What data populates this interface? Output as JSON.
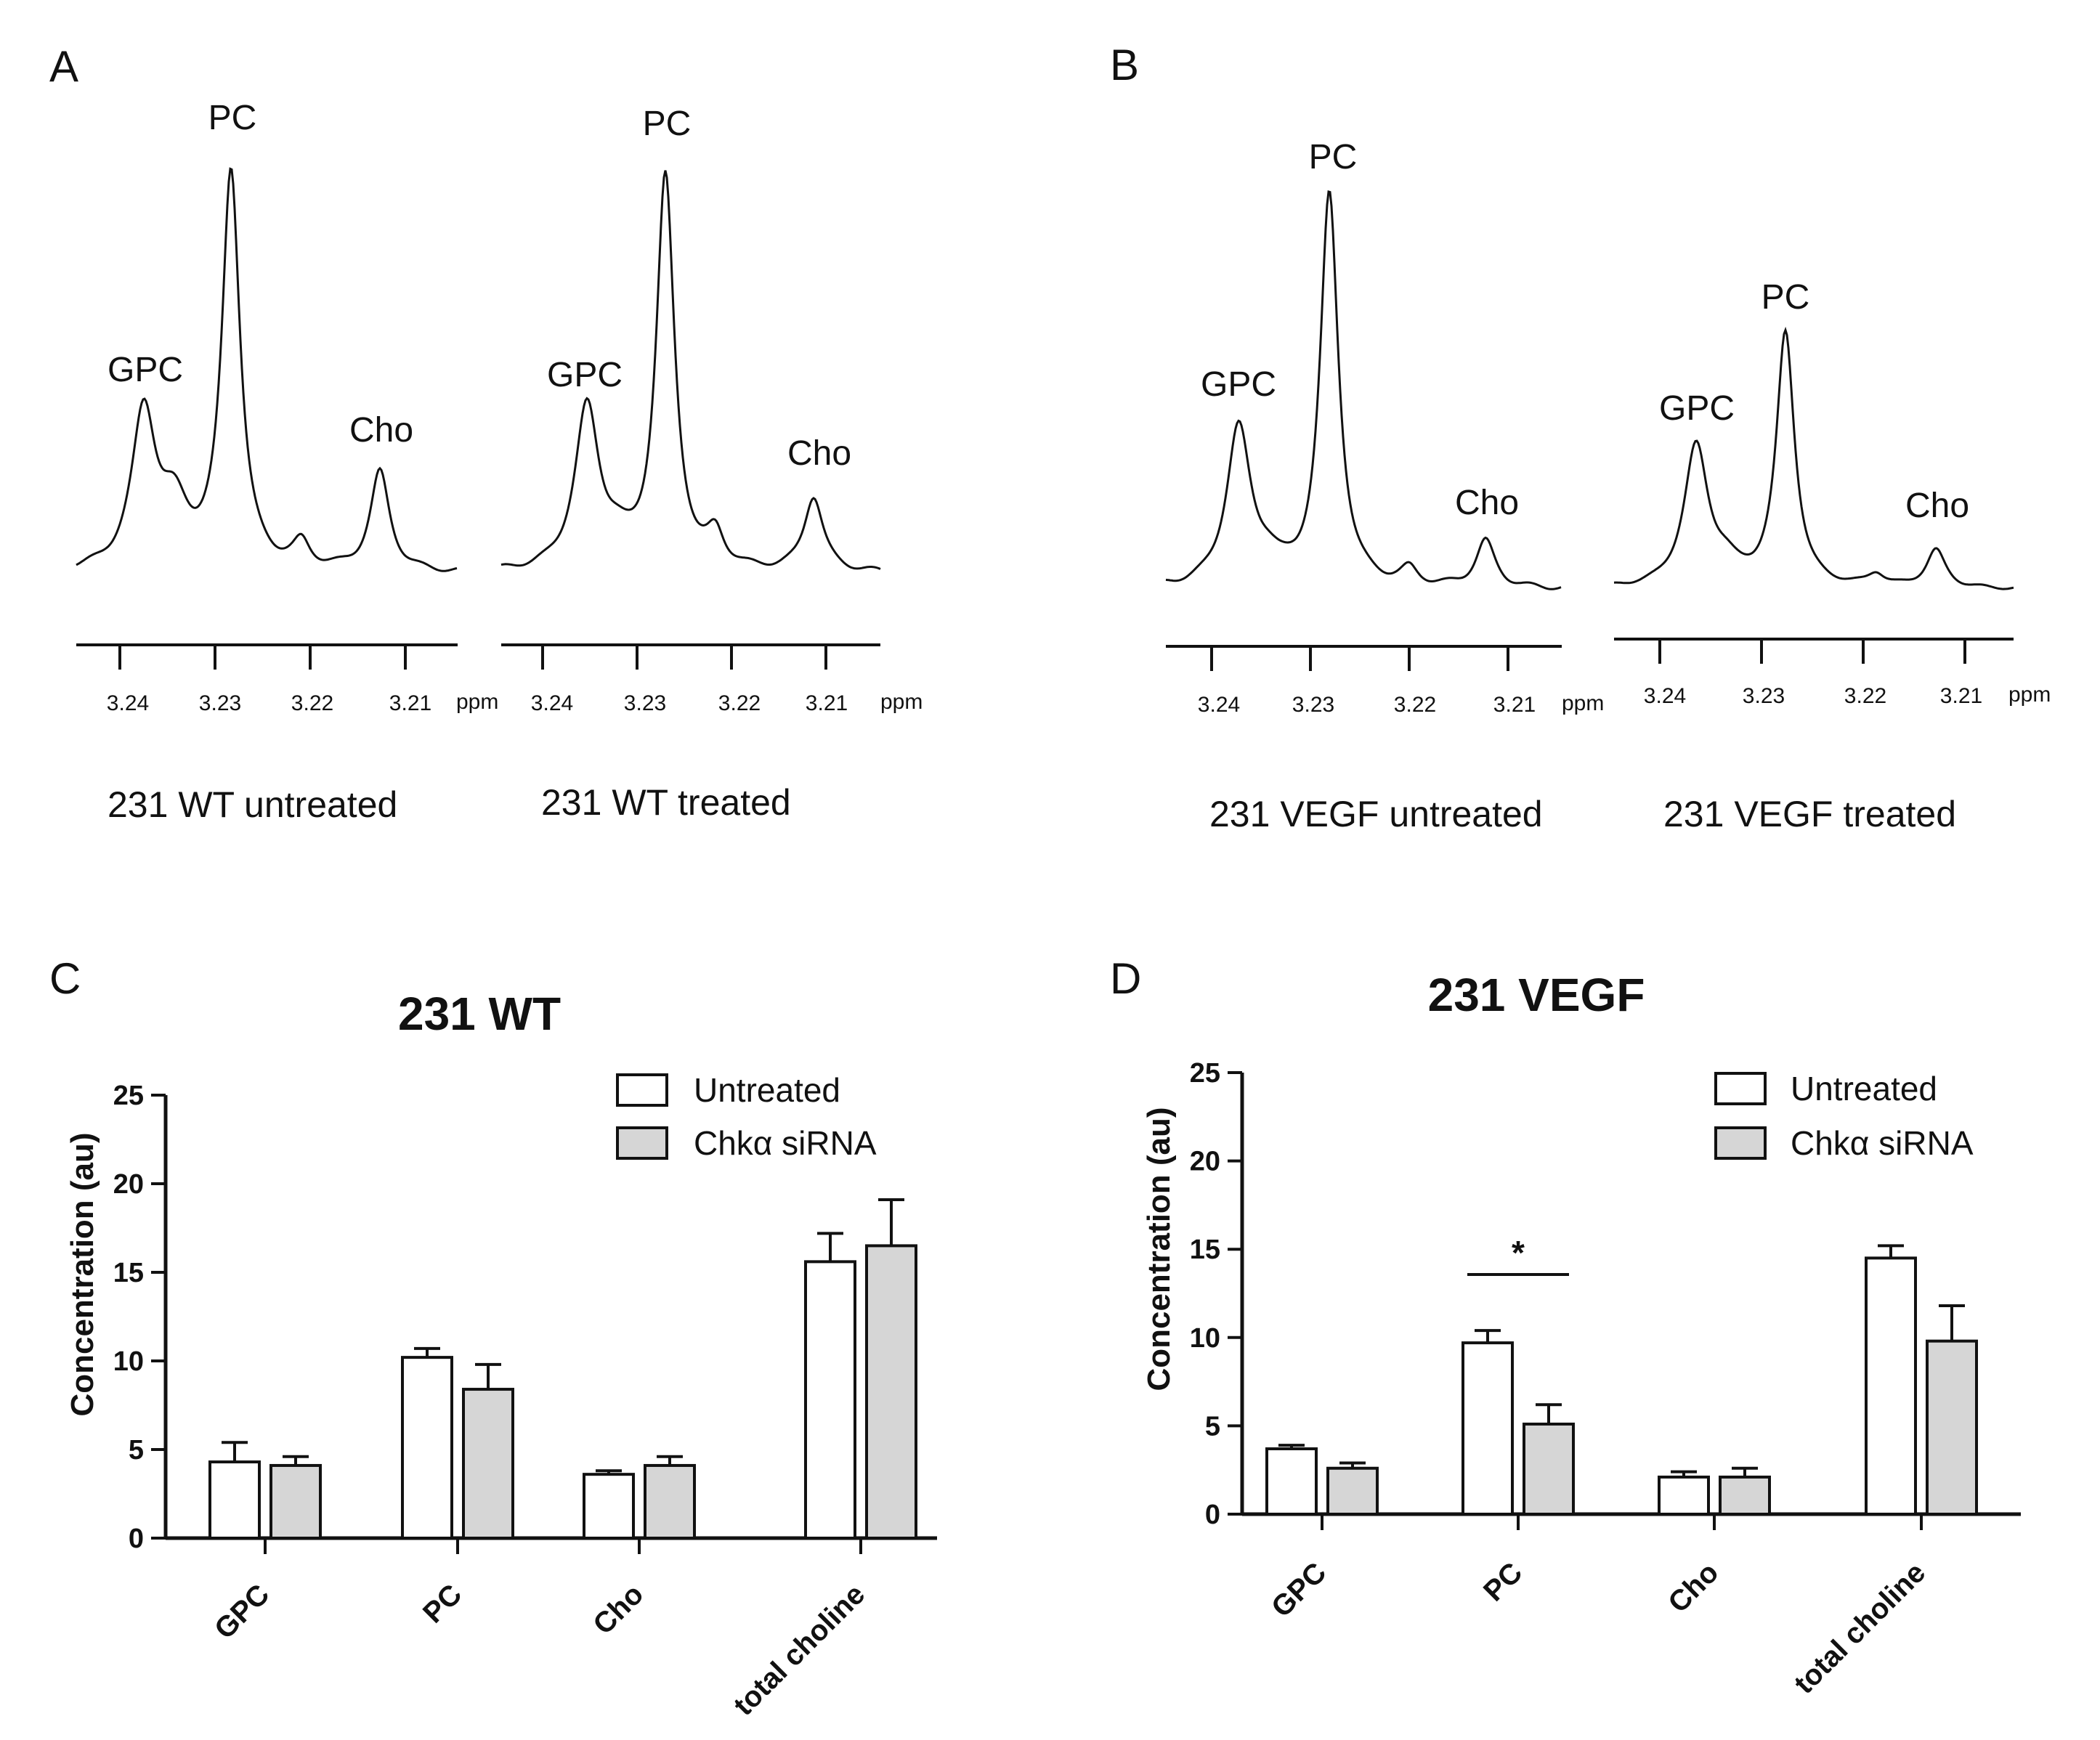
{
  "panels": {
    "A": "A",
    "B": "B",
    "C": "C",
    "D": "D"
  },
  "spectra": [
    {
      "caption": "231 WT untreated",
      "ppm_ticks": [
        "3.24",
        "3.23",
        "3.22",
        "3.21"
      ],
      "ppm_unit": "ppm",
      "peaks": {
        "gpc": "GPC",
        "pc": "PC",
        "cho": "Cho"
      },
      "relative_heights": {
        "gpc": 0.39,
        "pc": 1.0,
        "cho": 0.25,
        "minor": 0.06
      }
    },
    {
      "caption": "231 WT treated",
      "ppm_ticks": [
        "3.24",
        "3.23",
        "3.22",
        "3.21"
      ],
      "ppm_unit": "ppm",
      "peaks": {
        "gpc": "GPC",
        "pc": "PC",
        "cho": "Cho"
      },
      "relative_heights": {
        "gpc": 0.41,
        "pc": 1.0,
        "cho": 0.19,
        "minor": 0.08
      }
    },
    {
      "caption": "231 VEGF untreated",
      "ppm_ticks": [
        "3.24",
        "3.23",
        "3.22",
        "3.21"
      ],
      "ppm_unit": "ppm",
      "peaks": {
        "gpc": "GPC",
        "pc": "PC",
        "cho": "Cho"
      },
      "relative_heights": {
        "gpc": 0.4,
        "pc": 1.0,
        "cho": 0.12,
        "minor": 0.04
      }
    },
    {
      "caption": "231 VEGF treated",
      "ppm_ticks": [
        "3.24",
        "3.23",
        "3.22",
        "3.21"
      ],
      "ppm_unit": "ppm",
      "peaks": {
        "gpc": "GPC",
        "pc": "PC",
        "cho": "Cho"
      },
      "relative_heights": {
        "gpc": 0.55,
        "pc": 1.0,
        "cho": 0.15,
        "minor": 0.05
      }
    }
  ],
  "chart_data": [
    {
      "type": "bar",
      "title": "231 WT",
      "xlabel": "",
      "ylabel": "Concentration (au)",
      "ylim": [
        0,
        25
      ],
      "yticks": [
        "0",
        "5",
        "10",
        "15",
        "20",
        "25"
      ],
      "categories": [
        "GPC",
        "PC",
        "Cho",
        "total choline"
      ],
      "series": [
        {
          "name": "Untreated",
          "color": "#ffffff",
          "values": [
            4.3,
            10.2,
            3.6,
            15.6
          ],
          "errors": [
            1.1,
            0.5,
            0.2,
            1.6
          ]
        },
        {
          "name": "Chkα siRNA",
          "color": "#d6d6d6",
          "values": [
            4.1,
            8.4,
            4.1,
            16.5
          ],
          "errors": [
            0.5,
            1.4,
            0.5,
            2.6
          ]
        }
      ],
      "annotations": []
    },
    {
      "type": "bar",
      "title": "231 VEGF",
      "xlabel": "",
      "ylabel": "Concentration (au)",
      "ylim": [
        0,
        25
      ],
      "yticks": [
        "0",
        "5",
        "10",
        "15",
        "20",
        "25"
      ],
      "categories": [
        "GPC",
        "PC",
        "Cho",
        "total choline"
      ],
      "series": [
        {
          "name": "Untreated",
          "color": "#ffffff",
          "values": [
            3.7,
            9.7,
            2.1,
            14.5
          ],
          "errors": [
            0.2,
            0.7,
            0.3,
            0.7
          ]
        },
        {
          "name": "Chkα siRNA",
          "color": "#d6d6d6",
          "values": [
            2.6,
            5.1,
            2.1,
            9.8
          ],
          "errors": [
            0.3,
            1.1,
            0.5,
            2.0
          ]
        }
      ],
      "annotations": [
        {
          "text": "*",
          "category": "PC"
        }
      ]
    }
  ]
}
